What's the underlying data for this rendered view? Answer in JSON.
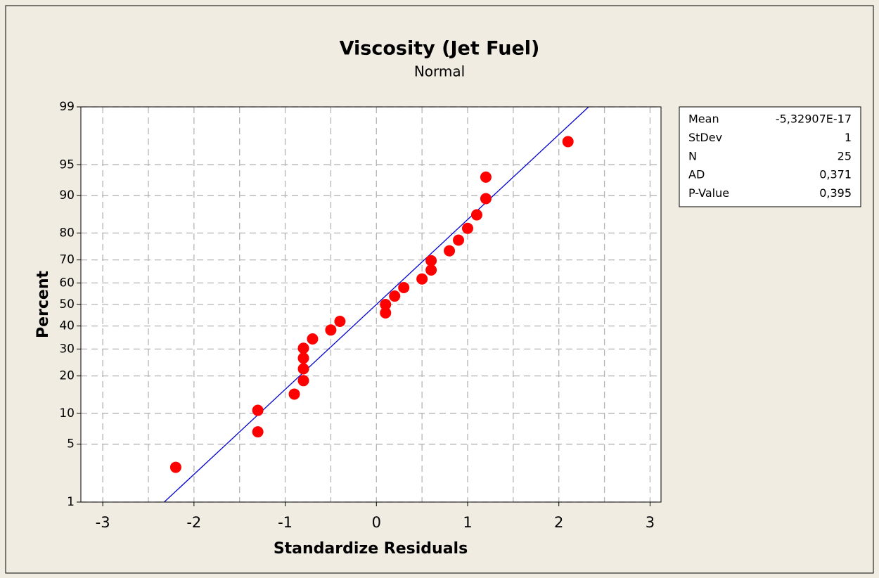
{
  "chart_data": {
    "type": "probability",
    "title": "Viscosity (Jet Fuel)",
    "subtitle": "Normal",
    "xlabel": "Standardize Residuals",
    "ylabel": "Percent",
    "x": [
      -2.2,
      -1.3,
      -1.3,
      -0.9,
      -0.8,
      -0.8,
      -0.8,
      -0.8,
      -0.7,
      -0.5,
      -0.4,
      0.1,
      0.1,
      0.2,
      0.3,
      0.5,
      0.6,
      0.6,
      0.8,
      0.9,
      1.0,
      1.1,
      1.2,
      1.2,
      2.1
    ],
    "values": [
      2.76,
      6.69,
      10.63,
      14.57,
      18.5,
      22.44,
      26.38,
      30.31,
      34.25,
      38.19,
      42.13,
      46.06,
      50,
      53.94,
      57.87,
      61.81,
      65.75,
      69.69,
      73.62,
      77.56,
      81.5,
      85.43,
      89.37,
      93.31,
      97.24
    ],
    "color": "#ff0000",
    "line_color": "#0000cc",
    "xlim": [
      -3.24,
      3.12
    ],
    "xticks": [
      -3,
      -2,
      -1,
      0,
      1,
      2,
      3
    ],
    "xminor": [
      -2.5,
      -1.5,
      -0.5,
      0.5,
      1.5,
      2.5
    ],
    "ylim": [
      1,
      99
    ],
    "yticks": [
      1,
      5,
      10,
      20,
      30,
      40,
      50,
      60,
      70,
      80,
      90,
      95,
      99
    ],
    "yscale": "normal-probability",
    "grid": true,
    "stats": [
      {
        "name": "Mean",
        "value": {
          "value": -5.32907e-17,
          "label": "-5,32907E-17"
        }
      },
      {
        "name": "StDev",
        "value": 1
      },
      {
        "name": "N",
        "value": 25
      },
      {
        "name": "AD",
        "value": {
          "value": 0.371,
          "label": "0,371"
        }
      },
      {
        "name": "P-Value",
        "value": {
          "value": 0.395,
          "label": "0,395"
        }
      }
    ]
  }
}
